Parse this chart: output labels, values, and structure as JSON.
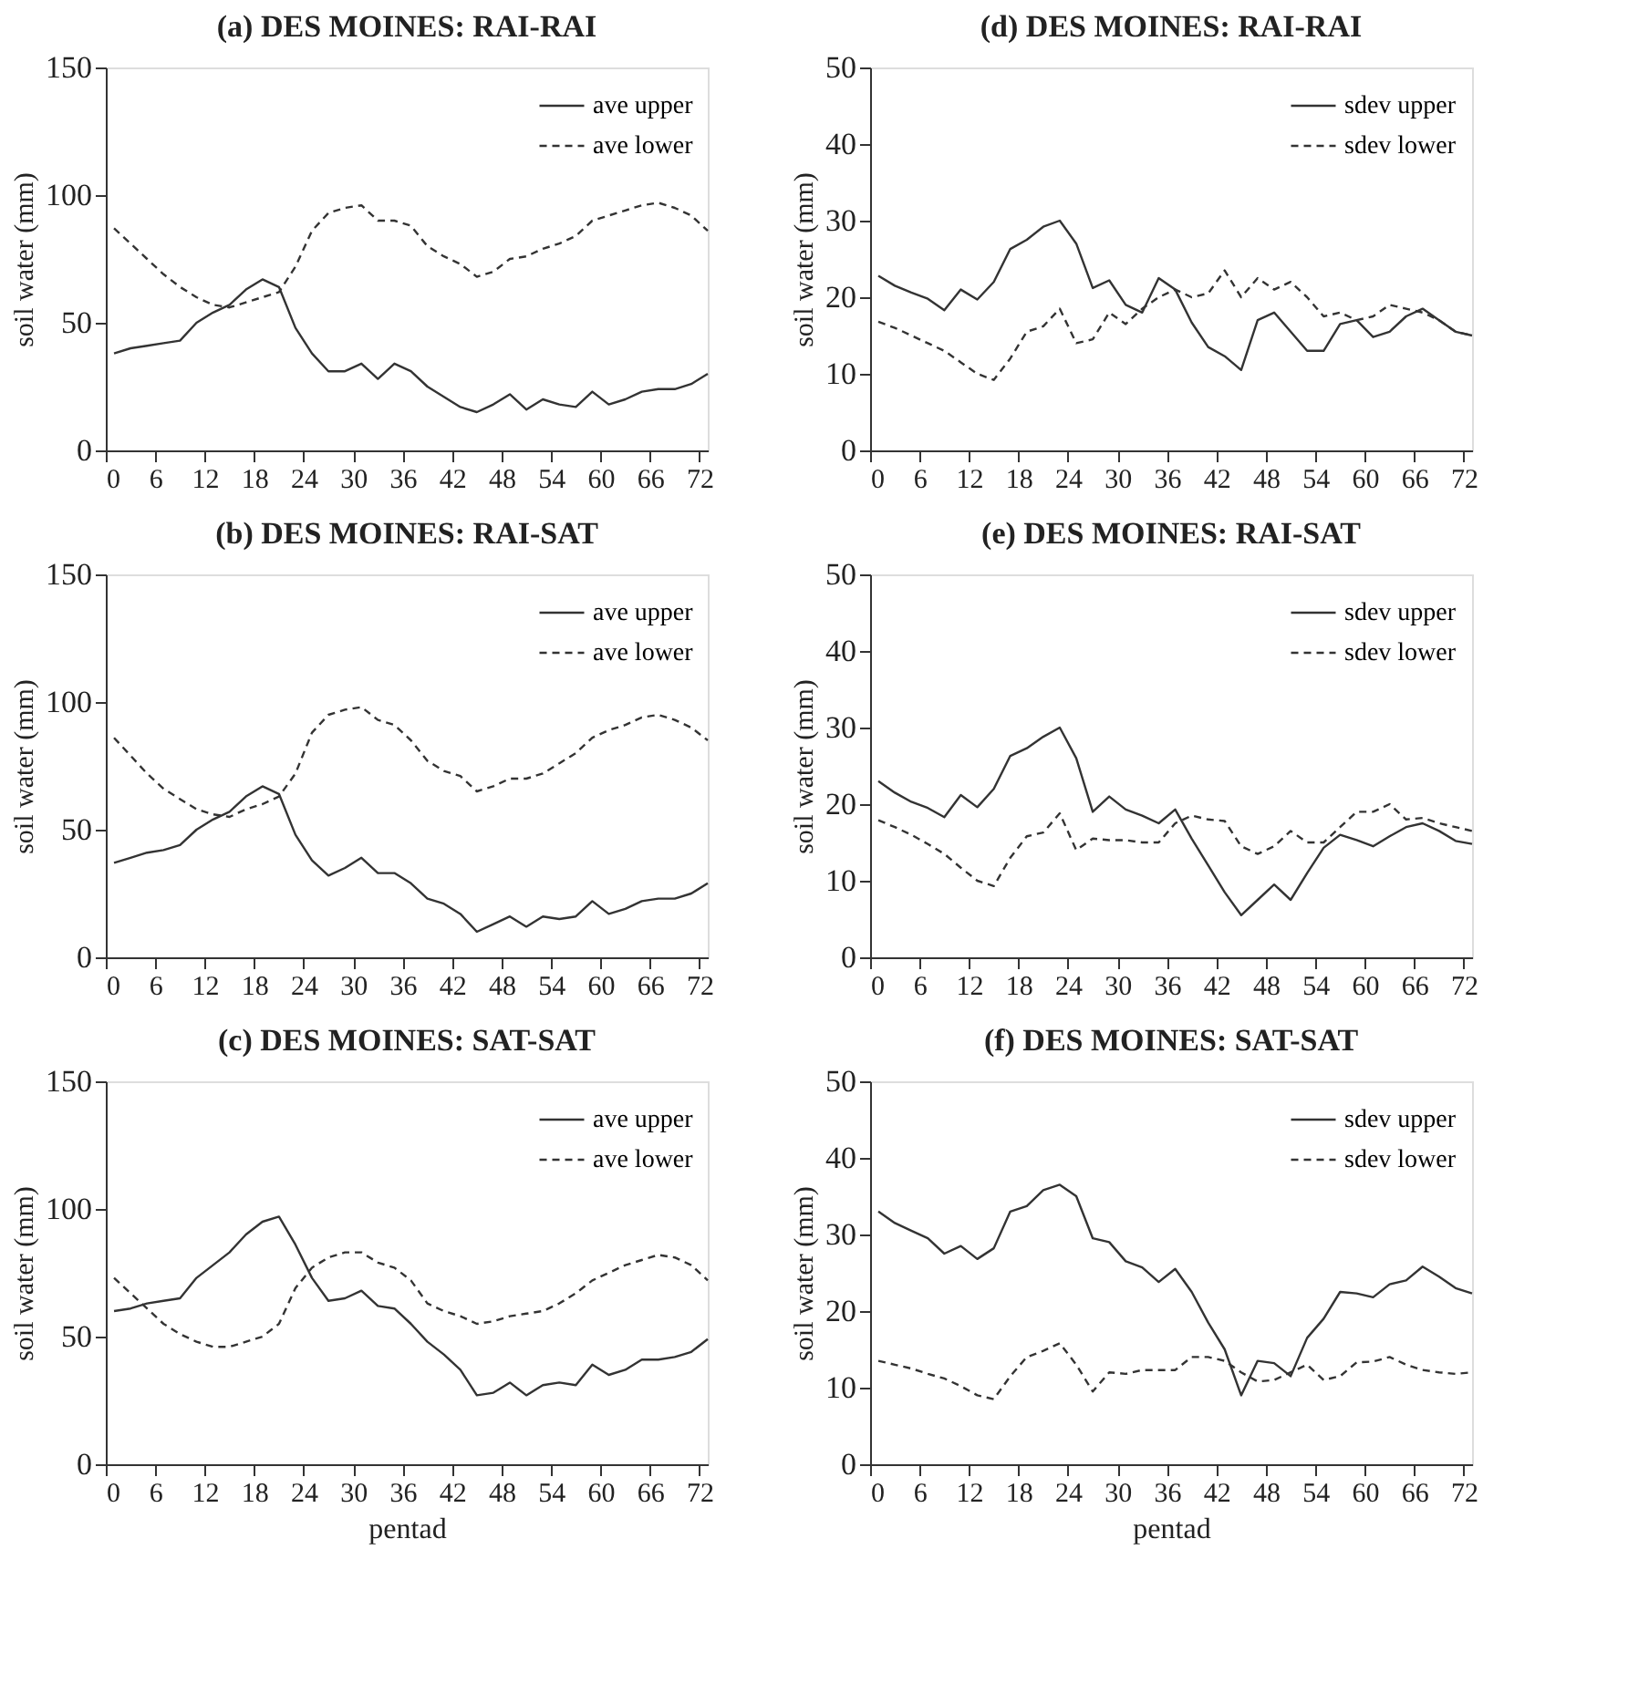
{
  "chart_data": [
    {
      "type": "line",
      "title": "(a) DES MOINES: RAI-RAI",
      "ylabel": "soil water (mm)",
      "xlim": [
        0,
        73
      ],
      "xticks": [
        0,
        6,
        12,
        18,
        24,
        30,
        36,
        42,
        48,
        54,
        60,
        66,
        72
      ],
      "ylim": [
        0,
        150
      ],
      "yticks": [
        0,
        50,
        100,
        150
      ],
      "legend": "top right",
      "grid": false,
      "x": [
        1,
        3,
        5,
        7,
        9,
        11,
        13,
        15,
        17,
        19,
        21,
        23,
        25,
        27,
        29,
        31,
        33,
        35,
        37,
        39,
        41,
        43,
        45,
        47,
        49,
        51,
        53,
        55,
        57,
        59,
        61,
        63,
        65,
        67,
        69,
        71,
        73
      ],
      "series": [
        {
          "name": "ave upper",
          "color": "#333333",
          "line_style": "solid",
          "values": [
            38,
            40,
            41,
            42,
            43,
            50,
            54,
            57,
            63,
            67,
            64,
            48,
            38,
            31,
            31,
            34,
            28,
            34,
            31,
            25,
            21,
            17,
            15,
            18,
            22,
            16,
            20,
            18,
            17,
            23,
            18,
            20,
            23,
            24,
            24,
            26,
            30
          ]
        },
        {
          "name": "ave lower",
          "color": "#333333",
          "line_style": "dashed",
          "values": [
            87,
            81,
            75,
            69,
            64,
            60,
            57,
            56,
            58,
            60,
            62,
            72,
            86,
            93,
            95,
            96,
            90,
            90,
            88,
            80,
            76,
            73,
            68,
            70,
            75,
            76,
            79,
            81,
            84,
            90,
            92,
            94,
            96,
            97,
            95,
            92,
            86
          ]
        }
      ]
    },
    {
      "type": "line",
      "title": "(d) DES MOINES: RAI-RAI",
      "ylabel": "soil water (mm)",
      "xlim": [
        0,
        73
      ],
      "xticks": [
        0,
        6,
        12,
        18,
        24,
        30,
        36,
        42,
        48,
        54,
        60,
        66,
        72
      ],
      "ylim": [
        0,
        50
      ],
      "yticks": [
        0,
        10,
        20,
        30,
        40,
        50
      ],
      "legend": "top right",
      "grid": false,
      "x": [
        1,
        3,
        5,
        7,
        9,
        11,
        13,
        15,
        17,
        19,
        21,
        23,
        25,
        27,
        29,
        31,
        33,
        35,
        37,
        39,
        41,
        43,
        45,
        47,
        49,
        51,
        53,
        55,
        57,
        59,
        61,
        63,
        65,
        67,
        69,
        71,
        73
      ],
      "series": [
        {
          "name": "sdev upper",
          "color": "#333333",
          "line_style": "solid",
          "values": [
            22.8,
            21.5,
            20.6,
            19.8,
            18.3,
            21,
            19.7,
            22,
            26.3,
            27.5,
            29.2,
            30,
            27,
            21.2,
            22.2,
            19,
            18,
            22.5,
            21,
            16.7,
            13.5,
            12.3,
            10.5,
            17,
            18,
            15.5,
            13,
            13,
            16.5,
            17,
            14.8,
            15.5,
            17.5,
            18.5,
            17,
            15.5,
            15
          ]
        },
        {
          "name": "sdev lower",
          "color": "#333333",
          "line_style": "dashed",
          "values": [
            16.8,
            16,
            15,
            14,
            13,
            11.5,
            10,
            9.2,
            12,
            15.5,
            16.2,
            18.5,
            14,
            14.5,
            18,
            16.5,
            18.5,
            20,
            21,
            20,
            20.5,
            23.5,
            20,
            22.5,
            21,
            22,
            20,
            17.5,
            18,
            17,
            17.5,
            19,
            18.5,
            18,
            17,
            15.5,
            15
          ]
        }
      ]
    },
    {
      "type": "line",
      "title": "(b) DES MOINES: RAI-SAT",
      "ylabel": "soil water (mm)",
      "xlim": [
        0,
        73
      ],
      "xticks": [
        0,
        6,
        12,
        18,
        24,
        30,
        36,
        42,
        48,
        54,
        60,
        66,
        72
      ],
      "ylim": [
        0,
        150
      ],
      "yticks": [
        0,
        50,
        100,
        150
      ],
      "legend": "top right",
      "grid": false,
      "x": [
        1,
        3,
        5,
        7,
        9,
        11,
        13,
        15,
        17,
        19,
        21,
        23,
        25,
        27,
        29,
        31,
        33,
        35,
        37,
        39,
        41,
        43,
        45,
        47,
        49,
        51,
        53,
        55,
        57,
        59,
        61,
        63,
        65,
        67,
        69,
        71,
        73
      ],
      "series": [
        {
          "name": "ave upper",
          "color": "#333333",
          "line_style": "solid",
          "values": [
            37,
            39,
            41,
            42,
            44,
            50,
            54,
            57,
            63,
            67,
            64,
            48,
            38,
            32,
            35,
            39,
            33,
            33,
            29,
            23,
            21,
            17,
            10,
            13,
            16,
            12,
            16,
            15,
            16,
            22,
            17,
            19,
            22,
            23,
            23,
            25,
            29
          ]
        },
        {
          "name": "ave lower",
          "color": "#333333",
          "line_style": "dashed",
          "values": [
            86,
            79,
            72,
            66,
            62,
            58,
            56,
            55,
            58,
            60,
            63,
            72,
            88,
            95,
            97,
            98,
            93,
            91,
            85,
            77,
            73,
            71,
            65,
            67,
            70,
            70,
            72,
            76,
            80,
            86,
            89,
            91,
            94,
            95,
            93,
            90,
            85
          ]
        }
      ]
    },
    {
      "type": "line",
      "title": "(e) DES MOINES: RAI-SAT",
      "ylabel": "soil water (mm)",
      "xlim": [
        0,
        73
      ],
      "xticks": [
        0,
        6,
        12,
        18,
        24,
        30,
        36,
        42,
        48,
        54,
        60,
        66,
        72
      ],
      "ylim": [
        0,
        50
      ],
      "yticks": [
        0,
        10,
        20,
        30,
        40,
        50
      ],
      "legend": "top right",
      "grid": false,
      "x": [
        1,
        3,
        5,
        7,
        9,
        11,
        13,
        15,
        17,
        19,
        21,
        23,
        25,
        27,
        29,
        31,
        33,
        35,
        37,
        39,
        41,
        43,
        45,
        47,
        49,
        51,
        53,
        55,
        57,
        59,
        61,
        63,
        65,
        67,
        69,
        71,
        73
      ],
      "series": [
        {
          "name": "sdev upper",
          "color": "#333333",
          "line_style": "solid",
          "values": [
            23,
            21.5,
            20.3,
            19.5,
            18.3,
            21.2,
            19.6,
            22,
            26.3,
            27.3,
            28.8,
            30,
            26,
            19,
            21,
            19.3,
            18.5,
            17.5,
            19.3,
            15.5,
            12,
            8.5,
            5.5,
            7.5,
            9.5,
            7.5,
            11,
            14.3,
            16,
            15.3,
            14.5,
            15.8,
            17,
            17.5,
            16.5,
            15.2,
            14.8
          ]
        },
        {
          "name": "sdev lower",
          "color": "#333333",
          "line_style": "dashed",
          "values": [
            17.9,
            17,
            16,
            14.8,
            13.5,
            11.7,
            10,
            9.3,
            13,
            15.8,
            16.3,
            18.8,
            14,
            15.5,
            15.3,
            15.3,
            15,
            15,
            17.5,
            18.5,
            18,
            17.8,
            14.5,
            13.5,
            14.5,
            16.5,
            15,
            15,
            17,
            19,
            19,
            20,
            18,
            18.2,
            17.5,
            17,
            16.5
          ]
        }
      ]
    },
    {
      "type": "line",
      "title": "(c) DES MOINES: SAT-SAT",
      "xlabel": "pentad",
      "ylabel": "soil water (mm)",
      "xlim": [
        0,
        73
      ],
      "xticks": [
        0,
        6,
        12,
        18,
        24,
        30,
        36,
        42,
        48,
        54,
        60,
        66,
        72
      ],
      "ylim": [
        0,
        150
      ],
      "yticks": [
        0,
        50,
        100,
        150
      ],
      "legend": "top right",
      "grid": false,
      "x": [
        1,
        3,
        5,
        7,
        9,
        11,
        13,
        15,
        17,
        19,
        21,
        23,
        25,
        27,
        29,
        31,
        33,
        35,
        37,
        39,
        41,
        43,
        45,
        47,
        49,
        51,
        53,
        55,
        57,
        59,
        61,
        63,
        65,
        67,
        69,
        71,
        73
      ],
      "series": [
        {
          "name": "ave upper",
          "color": "#333333",
          "line_style": "solid",
          "values": [
            60,
            61,
            63,
            64,
            65,
            73,
            78,
            83,
            90,
            95,
            97,
            86,
            73,
            64,
            65,
            68,
            62,
            61,
            55,
            48,
            43,
            37,
            27,
            28,
            32,
            27,
            31,
            32,
            31,
            39,
            35,
            37,
            41,
            41,
            42,
            44,
            49
          ]
        },
        {
          "name": "ave lower",
          "color": "#333333",
          "line_style": "dashed",
          "values": [
            73,
            67,
            61,
            55,
            51,
            48,
            46,
            46,
            48,
            50,
            55,
            69,
            77,
            81,
            83,
            83,
            79,
            77,
            72,
            63,
            60,
            58,
            55,
            56,
            58,
            59,
            60,
            63,
            67,
            72,
            75,
            78,
            80,
            82,
            81,
            78,
            72
          ]
        }
      ]
    },
    {
      "type": "line",
      "title": "(f) DES MOINES: SAT-SAT",
      "xlabel": "pentad",
      "ylabel": "soil water (mm)",
      "xlim": [
        0,
        73
      ],
      "xticks": [
        0,
        6,
        12,
        18,
        24,
        30,
        36,
        42,
        48,
        54,
        60,
        66,
        72
      ],
      "ylim": [
        0,
        50
      ],
      "yticks": [
        0,
        10,
        20,
        30,
        40,
        50
      ],
      "legend": "top right",
      "grid": false,
      "x": [
        1,
        3,
        5,
        7,
        9,
        11,
        13,
        15,
        17,
        19,
        21,
        23,
        25,
        27,
        29,
        31,
        33,
        35,
        37,
        39,
        41,
        43,
        45,
        47,
        49,
        51,
        53,
        55,
        57,
        59,
        61,
        63,
        65,
        67,
        69,
        71,
        73
      ],
      "series": [
        {
          "name": "sdev upper",
          "color": "#333333",
          "line_style": "solid",
          "values": [
            33,
            31.5,
            30.5,
            29.5,
            27.5,
            28.5,
            26.8,
            28.2,
            33,
            33.7,
            35.8,
            36.5,
            35,
            29.5,
            29,
            26.5,
            25.7,
            23.8,
            25.5,
            22.5,
            18.5,
            15,
            9,
            13.5,
            13.2,
            11.5,
            16.5,
            19,
            22.5,
            22.3,
            21.8,
            23.5,
            24,
            25.8,
            24.5,
            23,
            22.3
          ]
        },
        {
          "name": "sdev lower",
          "color": "#333333",
          "line_style": "dashed",
          "values": [
            13.5,
            13,
            12.5,
            11.8,
            11.2,
            10.2,
            9,
            8.5,
            11.5,
            14,
            14.8,
            15.8,
            13,
            9.5,
            12,
            11.8,
            12.3,
            12.3,
            12.3,
            14,
            14,
            13.5,
            12,
            10.8,
            11,
            12,
            13,
            11,
            11.5,
            13.3,
            13.4,
            14,
            13,
            12.3,
            12,
            11.8,
            12
          ]
        }
      ]
    }
  ]
}
